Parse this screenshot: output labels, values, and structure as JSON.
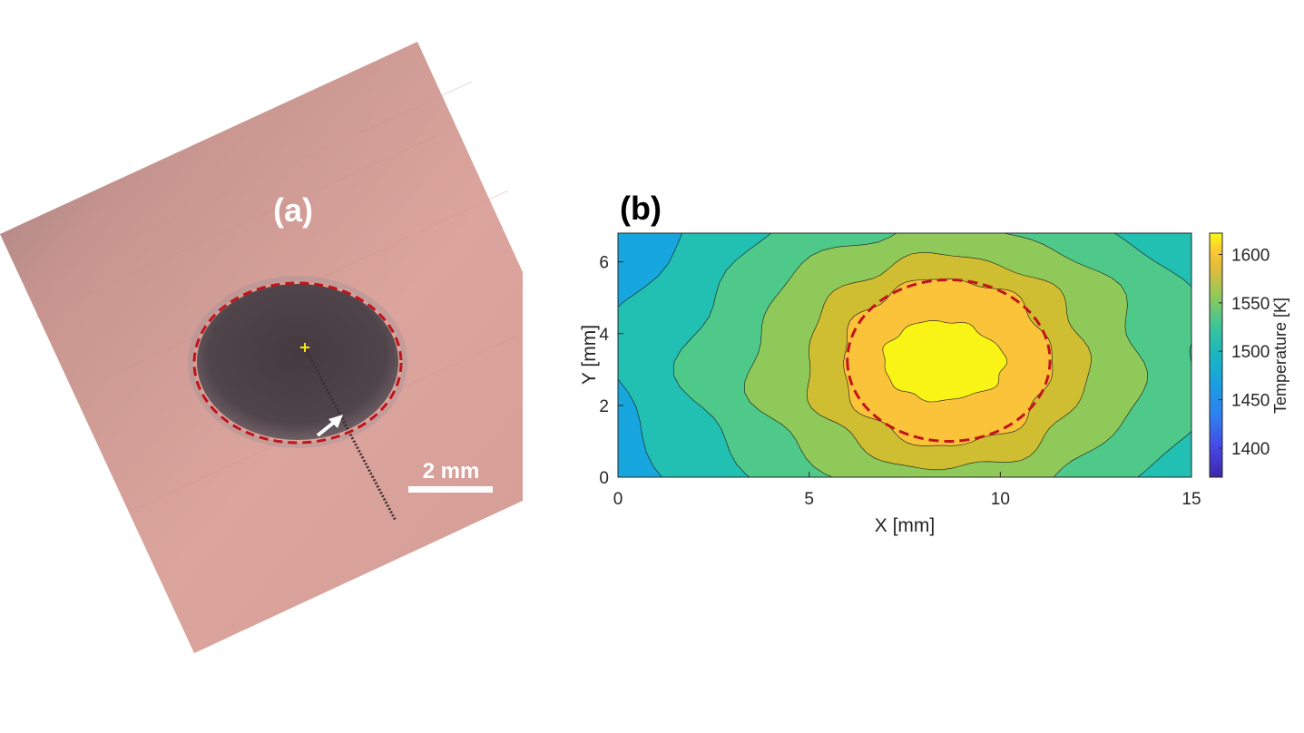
{
  "panel_a": {
    "label": "(a)",
    "scale_bar_label": "2 mm"
  },
  "panel_b": {
    "label": "(b)"
  },
  "colors": {
    "sample_surface": "#d9a39c",
    "scorch_spot": "#4a4045",
    "dashed_outline": "#c0141c",
    "center_marker": "#f2e41a",
    "annotation_white": "#ffffff"
  },
  "chart_data": {
    "type": "heatmap",
    "subtype": "filled-contour",
    "xlabel": "X [mm]",
    "ylabel": "Y [mm]",
    "xlim": [
      0,
      15
    ],
    "ylim": [
      0,
      6.8
    ],
    "xticks": [
      0,
      5,
      10,
      15
    ],
    "yticks": [
      0,
      2,
      4,
      6
    ],
    "colorbar": {
      "label": "Temperature [K]",
      "range": [
        1370,
        1622
      ],
      "ticks": [
        1400,
        1450,
        1500,
        1550,
        1600
      ],
      "colormap": "parula"
    },
    "hotspot_center": {
      "x": 8.6,
      "y": 3.2
    },
    "peak_temperature_K": 1615,
    "levels": [
      {
        "lower_K": 1370,
        "color": "#3b2eae"
      },
      {
        "lower_K": 1395,
        "color": "#4557ea"
      },
      {
        "lower_K": 1420,
        "color": "#2f7ff2"
      },
      {
        "lower_K": 1445,
        "color": "#17a6dd"
      },
      {
        "lower_K": 1470,
        "color": "#22bfb3"
      },
      {
        "lower_K": 1495,
        "color": "#4ec98a"
      },
      {
        "lower_K": 1520,
        "color": "#8fc95a"
      },
      {
        "lower_K": 1545,
        "color": "#cfbd32"
      },
      {
        "lower_K": 1570,
        "color": "#fbc33a"
      },
      {
        "lower_K": 1595,
        "color": "#f9f416"
      }
    ],
    "overlay_ellipse_dashed": {
      "center_x": 8.65,
      "center_y": 3.25,
      "semi_axis_x": 2.65,
      "semi_axis_y": 2.25
    }
  }
}
